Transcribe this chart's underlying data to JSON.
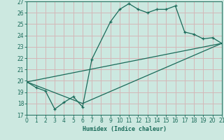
{
  "xlabel": "Humidex (Indice chaleur)",
  "xlim": [
    0,
    21
  ],
  "ylim": [
    17,
    27
  ],
  "xticks": [
    0,
    1,
    2,
    3,
    4,
    5,
    6,
    7,
    8,
    9,
    10,
    11,
    12,
    13,
    14,
    15,
    16,
    17,
    18,
    19,
    20,
    21
  ],
  "yticks": [
    17,
    18,
    19,
    20,
    21,
    22,
    23,
    24,
    25,
    26,
    27
  ],
  "bg_color": "#cce8e0",
  "grid_color": "#d4b8b8",
  "line_color": "#1a6b5a",
  "curve1_x": [
    0,
    1,
    2,
    3,
    4,
    5,
    6,
    7,
    9,
    10,
    11,
    12,
    13,
    14,
    15,
    16,
    17,
    18,
    19,
    20,
    21
  ],
  "curve1_y": [
    19.9,
    19.4,
    19.1,
    17.5,
    18.1,
    18.6,
    17.7,
    21.9,
    25.2,
    26.3,
    26.8,
    26.3,
    26.0,
    26.3,
    26.3,
    26.6,
    24.3,
    24.1,
    23.7,
    23.8,
    23.3
  ],
  "curve2_x": [
    0,
    6,
    21
  ],
  "curve2_y": [
    19.9,
    18.0,
    23.3
  ],
  "curve3_x": [
    0,
    21
  ],
  "curve3_y": [
    19.9,
    23.3
  ]
}
